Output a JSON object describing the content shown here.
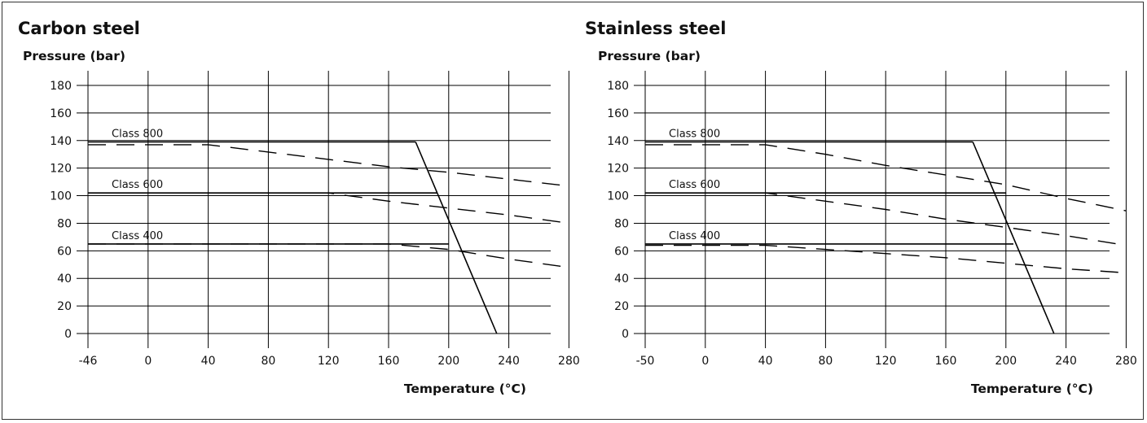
{
  "chart_data": [
    {
      "type": "line",
      "title": "Carbon steel",
      "ylabel": "Pressure (bar)",
      "xlabel": "Temperature (°C)",
      "xticks": [
        -46,
        0,
        40,
        80,
        120,
        160,
        200,
        240,
        280
      ],
      "xtick_labels": [
        "-46",
        "0",
        "40",
        "80",
        "120",
        "160",
        "200",
        "240",
        "280"
      ],
      "yticks": [
        0,
        20,
        40,
        60,
        80,
        100,
        120,
        140,
        160,
        180
      ],
      "ytick_labels": [
        "0",
        "20",
        "40",
        "60",
        "80",
        "100",
        "120",
        "140",
        "160",
        "180"
      ],
      "grid": true,
      "series": [
        {
          "name": "Class 800",
          "style": "solid",
          "x": [
            -46,
            178
          ],
          "y": [
            139,
            139
          ]
        },
        {
          "name": "Class 800",
          "style": "dashed",
          "x": [
            -46,
            40,
            160,
            200,
            240,
            280
          ],
          "y": [
            137,
            137,
            121,
            117,
            112,
            107
          ]
        },
        {
          "name": "Class 600",
          "style": "solid",
          "x": [
            -46,
            192
          ],
          "y": [
            102,
            102
          ]
        },
        {
          "name": "Class 600",
          "style": "dashed",
          "x": [
            -46,
            120,
            160,
            200,
            240,
            280
          ],
          "y": [
            102,
            102,
            96,
            91,
            86,
            80
          ]
        },
        {
          "name": "Class 400",
          "style": "solid",
          "x": [
            -46,
            200
          ],
          "y": [
            65,
            65
          ]
        },
        {
          "name": "Class 400",
          "style": "dashed",
          "x": [
            -46,
            160,
            200,
            240,
            280
          ],
          "y": [
            65,
            65,
            61,
            54,
            48
          ]
        },
        {
          "name": "",
          "style": "limit",
          "x": [
            178,
            232
          ],
          "y": [
            139,
            0
          ]
        }
      ]
    },
    {
      "type": "line",
      "title": "Stainless steel",
      "ylabel": "Pressure (bar)",
      "xlabel": "Temperature (°C)",
      "xticks": [
        -50,
        0,
        40,
        80,
        120,
        160,
        200,
        240,
        280
      ],
      "xtick_labels": [
        "-50",
        "0",
        "40",
        "80",
        "120",
        "160",
        "200",
        "240",
        "280"
      ],
      "yticks": [
        0,
        20,
        40,
        60,
        80,
        100,
        120,
        140,
        160,
        180
      ],
      "ytick_labels": [
        "0",
        "20",
        "40",
        "60",
        "80",
        "100",
        "120",
        "140",
        "160",
        "180"
      ],
      "grid": true,
      "series": [
        {
          "name": "Class 800",
          "style": "solid",
          "x": [
            -50,
            178
          ],
          "y": [
            139,
            139
          ]
        },
        {
          "name": "Class 800",
          "style": "dashed",
          "x": [
            -50,
            40,
            80,
            120,
            160,
            200,
            240,
            280
          ],
          "y": [
            137,
            137,
            130,
            122,
            115,
            108,
            98,
            89
          ]
        },
        {
          "name": "Class 600",
          "style": "solid",
          "x": [
            -50,
            200
          ],
          "y": [
            102,
            102
          ]
        },
        {
          "name": "Class 600",
          "style": "dashed",
          "x": [
            -50,
            40,
            80,
            120,
            160,
            200,
            240,
            280
          ],
          "y": [
            102,
            102,
            96,
            90,
            83,
            77,
            71,
            64
          ]
        },
        {
          "name": "Class 400",
          "style": "solid",
          "x": [
            -50,
            205
          ],
          "y": [
            65,
            65
          ]
        },
        {
          "name": "Class 400",
          "style": "dashed",
          "x": [
            -50,
            40,
            80,
            120,
            160,
            200,
            240,
            280
          ],
          "y": [
            64,
            64,
            61,
            58,
            55,
            51,
            47,
            44
          ]
        },
        {
          "name": "",
          "style": "limit",
          "x": [
            178,
            232
          ],
          "y": [
            139,
            0
          ]
        }
      ]
    }
  ]
}
